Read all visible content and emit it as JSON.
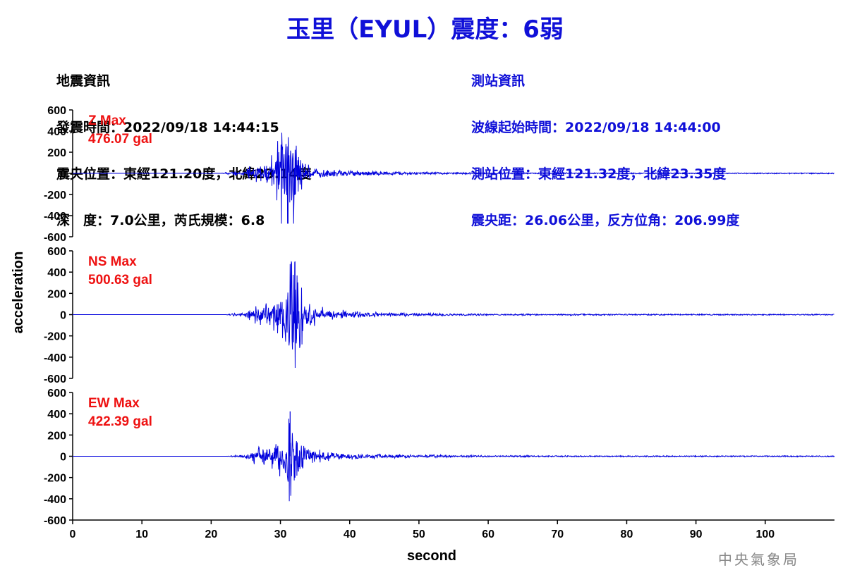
{
  "title": "玉里（EYUL）震度：6弱",
  "quake_info": {
    "heading": "地震資訊",
    "lines": [
      "發震時間：2022/09/18 14:44:15",
      "震央位置：東經121.20度，北緯23.14度",
      "深　度：7.0公里，芮氏規模：6.8"
    ]
  },
  "station_info": {
    "heading": "測站資訊",
    "lines": [
      "波線起始時間：2022/09/18 14:44:00",
      "測站位置：東經121.32度，北緯23.35度",
      "震央距：26.06公里，反方位角：206.99度"
    ]
  },
  "credit": "中央氣象局",
  "chart_data": {
    "type": "line",
    "xlabel": "second",
    "ylabel": "acceleration",
    "xlim": [
      0,
      110
    ],
    "x_ticks": [
      "0",
      "10",
      "20",
      "30",
      "40",
      "50",
      "60",
      "70",
      "80",
      "90",
      "100"
    ],
    "ylim": [
      -600,
      600
    ],
    "y_ticks": [
      "600",
      "400",
      "200",
      "0",
      "-200",
      "-400",
      "-600"
    ],
    "line_color": "#0000dd",
    "label_color": "#ee1111",
    "panels": [
      {
        "name": "Z Max",
        "max_label": "476.07 gal",
        "max": 476.07,
        "keypoints": [
          [
            21.4,
            0
          ],
          [
            22.5,
            -8
          ],
          [
            23.5,
            15
          ],
          [
            24.5,
            -20
          ],
          [
            25.5,
            40
          ],
          [
            26.5,
            -55
          ],
          [
            27.3,
            70
          ],
          [
            28,
            -80
          ],
          [
            28.7,
            110
          ],
          [
            29.3,
            -120
          ],
          [
            29.6,
            280
          ],
          [
            29.9,
            -230
          ],
          [
            30.1,
            420
          ],
          [
            30.4,
            -200
          ],
          [
            30.7,
            410
          ],
          [
            31,
            -310
          ],
          [
            31.1,
            -476
          ],
          [
            31.3,
            350
          ],
          [
            31.6,
            -260
          ],
          [
            31.9,
            380
          ],
          [
            32.3,
            -230
          ],
          [
            32.6,
            200
          ],
          [
            33,
            -120
          ],
          [
            33.5,
            90
          ],
          [
            34,
            -55
          ],
          [
            35,
            40
          ],
          [
            36,
            -25
          ],
          [
            38,
            18
          ],
          [
            40,
            -14
          ],
          [
            43,
            10
          ],
          [
            47,
            -7
          ],
          [
            52,
            5
          ],
          [
            56,
            -4
          ],
          [
            62,
            4
          ],
          [
            70,
            -3
          ],
          [
            80,
            2
          ],
          [
            95,
            1
          ]
        ]
      },
      {
        "name": "NS Max",
        "max_label": "500.63 gal",
        "max": 500.63,
        "keypoints": [
          [
            22,
            0
          ],
          [
            23.5,
            10
          ],
          [
            24.5,
            -15
          ],
          [
            25.5,
            35
          ],
          [
            26.5,
            -65
          ],
          [
            27.2,
            90
          ],
          [
            27.8,
            -100
          ],
          [
            28.5,
            80
          ],
          [
            29,
            -120
          ],
          [
            29.6,
            130
          ],
          [
            30.2,
            -180
          ],
          [
            30.8,
            210
          ],
          [
            31.2,
            -340
          ],
          [
            31.4,
            360
          ],
          [
            31.7,
            480
          ],
          [
            31.9,
            -360
          ],
          [
            32.1,
            500
          ],
          [
            32.4,
            -280
          ],
          [
            32.7,
            300
          ],
          [
            33.1,
            -180
          ],
          [
            33.6,
            140
          ],
          [
            34.2,
            -90
          ],
          [
            35,
            70
          ],
          [
            36,
            -50
          ],
          [
            37.5,
            40
          ],
          [
            39,
            -28
          ],
          [
            41,
            20
          ],
          [
            44,
            -14
          ],
          [
            48,
            10
          ],
          [
            52,
            -8
          ],
          [
            58,
            6
          ],
          [
            65,
            -5
          ],
          [
            72,
            4
          ],
          [
            80,
            3
          ],
          [
            90,
            2
          ]
        ]
      },
      {
        "name": "EW Max",
        "max_label": "422.39 gal",
        "max": 422.39,
        "keypoints": [
          [
            22.2,
            0
          ],
          [
            23.5,
            8
          ],
          [
            24.5,
            -12
          ],
          [
            25.5,
            25
          ],
          [
            26.2,
            -45
          ],
          [
            26.9,
            60
          ],
          [
            27.5,
            -70
          ],
          [
            28.2,
            85
          ],
          [
            28.8,
            -90
          ],
          [
            29.4,
            120
          ],
          [
            29.8,
            -150
          ],
          [
            30.3,
            180
          ],
          [
            30.7,
            -230
          ],
          [
            30.9,
            -360
          ],
          [
            31.1,
            200
          ],
          [
            31.4,
            422
          ],
          [
            31.7,
            -280
          ],
          [
            32,
            210
          ],
          [
            32.4,
            -200
          ],
          [
            32.8,
            160
          ],
          [
            33.3,
            -110
          ],
          [
            33.9,
            80
          ],
          [
            34.6,
            -60
          ],
          [
            35.5,
            45
          ],
          [
            37,
            -35
          ],
          [
            38.5,
            25
          ],
          [
            40.5,
            -18
          ],
          [
            43,
            14
          ],
          [
            47,
            -10
          ],
          [
            52,
            8
          ],
          [
            58,
            -6
          ],
          [
            65,
            5
          ],
          [
            72,
            -4
          ],
          [
            80,
            3
          ],
          [
            90,
            2
          ]
        ]
      }
    ]
  }
}
